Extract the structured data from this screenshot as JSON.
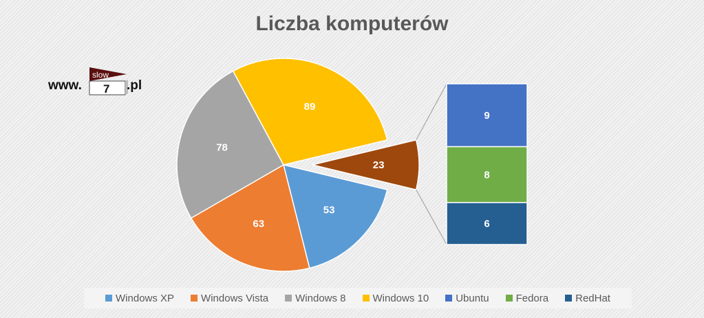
{
  "chart_data": {
    "type": "pie",
    "subtype": "bar-of-pie",
    "title": "Liczba komputerów",
    "slices": [
      {
        "name": "Windows XP",
        "value": 53,
        "color": "#5b9bd5"
      },
      {
        "name": "Windows Vista",
        "value": 63,
        "color": "#ed7d31"
      },
      {
        "name": "Windows 8",
        "value": 78,
        "color": "#a5a5a5"
      },
      {
        "name": "Windows 10",
        "value": 89,
        "color": "#ffc000"
      },
      {
        "name": "",
        "value": 23,
        "color": "#9e480e"
      }
    ],
    "bar_segments": [
      {
        "name": "Ubuntu",
        "value": 9,
        "color": "#4472c4"
      },
      {
        "name": "Fedora",
        "value": 8,
        "color": "#70ad47"
      },
      {
        "name": "RedHat",
        "value": 6,
        "color": "#255e91"
      }
    ],
    "legend_position": "bottom",
    "legend": [
      {
        "label": "Windows XP",
        "color": "#5b9bd5"
      },
      {
        "label": "Windows Vista",
        "color": "#ed7d31"
      },
      {
        "label": "Windows 8",
        "color": "#a5a5a5"
      },
      {
        "label": "Windows 10",
        "color": "#ffc000"
      },
      {
        "label": "Ubuntu",
        "color": "#4472c4"
      },
      {
        "label": "Fedora",
        "color": "#70ad47"
      },
      {
        "label": "RedHat",
        "color": "#255e91"
      }
    ]
  },
  "logo": {
    "prefix": "www.",
    "mark_top": "slow",
    "mark_number": "7",
    "suffix": ".pl"
  }
}
